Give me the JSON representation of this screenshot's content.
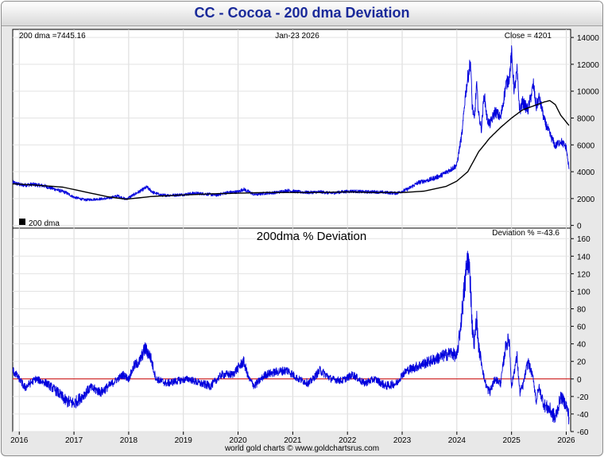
{
  "title": "CC  -  Cocoa - 200 dma Deviation",
  "footer": "world gold charts © www.goldchartsrus.com",
  "chart_data": [
    {
      "type": "line",
      "name": "price-panel",
      "header_left": "200 dma =7445.16",
      "header_center": "Jan-23  2026",
      "header_right": "Close = 4201",
      "legend": "200 dma",
      "y_ticks": [
        0,
        2000,
        4000,
        6000,
        8000,
        10000,
        12000,
        14000
      ],
      "ylim": [
        -200,
        14600
      ],
      "xlim": [
        2015.88,
        2026.08
      ],
      "series": [
        {
          "name": "Close",
          "color": "#0000dd",
          "x": [
            2015.88,
            2016.05,
            2016.25,
            2016.45,
            2016.65,
            2016.85,
            2017.0,
            2017.2,
            2017.4,
            2017.6,
            2017.8,
            2017.95,
            2018.1,
            2018.25,
            2018.33,
            2018.45,
            2018.6,
            2018.8,
            2019.0,
            2019.2,
            2019.4,
            2019.6,
            2019.8,
            2020.0,
            2020.1,
            2020.2,
            2020.3,
            2020.5,
            2020.7,
            2020.9,
            2021.1,
            2021.3,
            2021.5,
            2021.7,
            2021.9,
            2022.1,
            2022.3,
            2022.5,
            2022.7,
            2022.9,
            2023.0,
            2023.1,
            2023.3,
            2023.5,
            2023.7,
            2023.9,
            2024.0,
            2024.05,
            2024.1,
            2024.15,
            2024.2,
            2024.25,
            2024.28,
            2024.32,
            2024.36,
            2024.4,
            2024.45,
            2024.5,
            2024.55,
            2024.6,
            2024.7,
            2024.8,
            2024.9,
            2024.96,
            2025.0,
            2025.05,
            2025.1,
            2025.15,
            2025.2,
            2025.3,
            2025.4,
            2025.45,
            2025.5,
            2025.55,
            2025.6,
            2025.7,
            2025.8,
            2025.9,
            2026.0,
            2026.05
          ],
          "y": [
            3200,
            3000,
            3050,
            2950,
            2700,
            2450,
            2100,
            1900,
            1950,
            2000,
            2200,
            1950,
            2300,
            2650,
            2850,
            2450,
            2250,
            2250,
            2300,
            2400,
            2350,
            2250,
            2450,
            2500,
            2700,
            2500,
            2300,
            2400,
            2450,
            2600,
            2500,
            2450,
            2500,
            2400,
            2500,
            2550,
            2500,
            2500,
            2450,
            2400,
            2550,
            2700,
            3200,
            3400,
            3700,
            4200,
            4500,
            5800,
            7000,
            9500,
            11000,
            12200,
            9000,
            7800,
            10500,
            8200,
            7200,
            9800,
            8000,
            7500,
            8500,
            8000,
            10500,
            11000,
            12800,
            10000,
            11500,
            8500,
            9200,
            8600,
            10500,
            8800,
            9500,
            8800,
            7800,
            6800,
            5900,
            6300,
            5800,
            4200
          ]
        },
        {
          "name": "200 dma",
          "color": "#000000",
          "x": [
            2015.88,
            2016.3,
            2016.8,
            2017.2,
            2017.6,
            2017.95,
            2018.4,
            2018.9,
            2019.5,
            2020.0,
            2020.5,
            2021.0,
            2021.5,
            2022.0,
            2022.5,
            2023.0,
            2023.4,
            2023.8,
            2024.0,
            2024.2,
            2024.4,
            2024.6,
            2024.8,
            2025.0,
            2025.2,
            2025.4,
            2025.6,
            2025.7,
            2025.8,
            2025.9,
            2026.05
          ],
          "y": [
            3100,
            3000,
            2850,
            2500,
            2150,
            1950,
            2150,
            2250,
            2350,
            2400,
            2450,
            2450,
            2450,
            2500,
            2450,
            2450,
            2550,
            2900,
            3300,
            4000,
            5500,
            6500,
            7300,
            8000,
            8600,
            8900,
            9200,
            9300,
            9000,
            8200,
            7450
          ]
        }
      ]
    },
    {
      "type": "line",
      "name": "deviation-panel",
      "title": "200dma  %  Deviation",
      "header_right": "Deviation % =-43.6",
      "y_ticks": [
        -60,
        -40,
        -20,
        0,
        20,
        40,
        60,
        80,
        100,
        120,
        140,
        160
      ],
      "ylim": [
        -60,
        172
      ],
      "xlim": [
        2015.88,
        2026.08
      ],
      "x_ticks": [
        "2016",
        "2017",
        "2018",
        "2019",
        "2020",
        "2021",
        "2022",
        "2023",
        "2024",
        "2025",
        "2026"
      ],
      "zero_line_color": "#cc0000",
      "series": [
        {
          "name": "Deviation %",
          "color": "#0000dd",
          "x": [
            2015.88,
            2016.0,
            2016.1,
            2016.3,
            2016.5,
            2016.7,
            2016.85,
            2017.0,
            2017.15,
            2017.3,
            2017.5,
            2017.7,
            2017.9,
            2018.0,
            2018.1,
            2018.2,
            2018.3,
            2018.4,
            2018.5,
            2018.7,
            2018.9,
            2019.1,
            2019.3,
            2019.5,
            2019.7,
            2019.9,
            2020.1,
            2020.2,
            2020.3,
            2020.5,
            2020.7,
            2020.9,
            2021.1,
            2021.3,
            2021.5,
            2021.7,
            2021.9,
            2022.1,
            2022.3,
            2022.5,
            2022.7,
            2022.9,
            2023.0,
            2023.1,
            2023.3,
            2023.5,
            2023.7,
            2023.9,
            2024.0,
            2024.05,
            2024.1,
            2024.15,
            2024.2,
            2024.25,
            2024.28,
            2024.32,
            2024.36,
            2024.4,
            2024.45,
            2024.5,
            2024.55,
            2024.6,
            2024.7,
            2024.8,
            2024.9,
            2024.96,
            2025.0,
            2025.05,
            2025.1,
            2025.15,
            2025.2,
            2025.3,
            2025.4,
            2025.45,
            2025.5,
            2025.6,
            2025.7,
            2025.8,
            2025.9,
            2026.0,
            2026.05
          ],
          "y": [
            10,
            0,
            -10,
            0,
            -5,
            -15,
            -25,
            -28,
            -20,
            -10,
            -15,
            -5,
            5,
            0,
            15,
            20,
            35,
            25,
            0,
            -5,
            -2,
            0,
            -5,
            -8,
            5,
            5,
            20,
            0,
            -8,
            5,
            8,
            10,
            0,
            -5,
            10,
            0,
            -2,
            5,
            -5,
            0,
            -8,
            -5,
            5,
            10,
            15,
            20,
            25,
            30,
            25,
            50,
            80,
            110,
            140,
            110,
            60,
            40,
            70,
            35,
            20,
            0,
            -10,
            -15,
            0,
            -5,
            40,
            45,
            -10,
            10,
            25,
            -15,
            -10,
            20,
            0,
            -25,
            -10,
            -30,
            -35,
            -45,
            -20,
            -30,
            -43.6
          ]
        }
      ]
    }
  ]
}
